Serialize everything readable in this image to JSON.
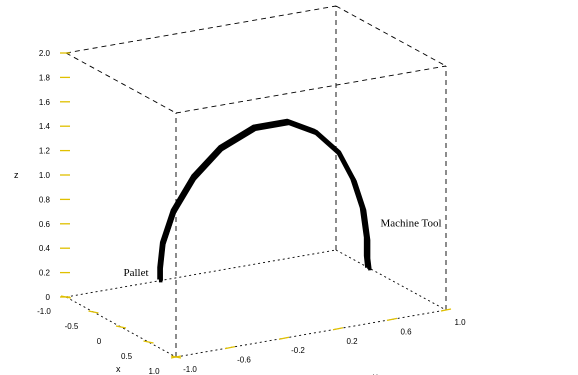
{
  "chart_data": {
    "type": "line3d",
    "title": "",
    "xlabel": "x",
    "ylabel": "y",
    "zlabel": "z",
    "xlim": [
      -1.0,
      1.0
    ],
    "ylim": [
      -1.0,
      1.0
    ],
    "zlim": [
      0,
      2.0
    ],
    "x_ticks": [
      "-1.0",
      "-0.5",
      "0",
      "0.5",
      "1.0"
    ],
    "y_ticks": [
      "-1.0",
      "-0.6",
      "-0.2",
      "0.2",
      "0.6",
      "1.0"
    ],
    "z_ticks": [
      "0",
      "0.2",
      "0.4",
      "0.6",
      "0.8",
      "1.0",
      "1.2",
      "1.4",
      "1.6",
      "1.8",
      "2.0"
    ],
    "tick_color": "#e0c000",
    "line_color": "#000000",
    "grid": false,
    "annotations": [
      {
        "text": "Pallet",
        "x": -0.2,
        "y": -0.9,
        "z": 0.35
      },
      {
        "text": "Machine Tool",
        "x": 0.3,
        "y": 0.8,
        "z": 0.55
      }
    ],
    "series": [
      {
        "points": [
          [
            0.2,
            -0.8,
            0.4
          ],
          [
            0.2,
            -0.8,
            0.5
          ],
          [
            0.2,
            -0.78,
            0.7
          ],
          [
            0.2,
            -0.7,
            0.95
          ],
          [
            0.2,
            -0.55,
            1.2
          ],
          [
            0.2,
            -0.35,
            1.4
          ],
          [
            0.2,
            -0.1,
            1.52
          ],
          [
            0.2,
            0.15,
            1.52
          ],
          [
            0.2,
            0.35,
            1.4
          ],
          [
            0.2,
            0.52,
            1.2
          ],
          [
            0.2,
            0.63,
            0.95
          ],
          [
            0.2,
            0.7,
            0.7
          ],
          [
            0.2,
            0.73,
            0.45
          ],
          [
            0.2,
            0.73,
            0.3
          ],
          [
            0.2,
            0.74,
            0.2
          ]
        ]
      },
      {
        "points": [
          [
            0.24,
            -0.8,
            0.4
          ],
          [
            0.24,
            -0.8,
            0.5
          ],
          [
            0.24,
            -0.78,
            0.7
          ],
          [
            0.24,
            -0.7,
            0.95
          ],
          [
            0.24,
            -0.55,
            1.2
          ],
          [
            0.24,
            -0.35,
            1.4
          ],
          [
            0.24,
            -0.1,
            1.52
          ],
          [
            0.24,
            0.15,
            1.52
          ],
          [
            0.24,
            0.35,
            1.4
          ],
          [
            0.24,
            0.52,
            1.2
          ],
          [
            0.24,
            0.63,
            0.95
          ],
          [
            0.24,
            0.7,
            0.7
          ],
          [
            0.24,
            0.73,
            0.45
          ],
          [
            0.24,
            0.73,
            0.3
          ],
          [
            0.24,
            0.74,
            0.2
          ]
        ]
      },
      {
        "points": [
          [
            0.28,
            -0.82,
            0.4
          ],
          [
            0.28,
            -0.82,
            0.5
          ],
          [
            0.28,
            -0.8,
            0.7
          ],
          [
            0.28,
            -0.72,
            0.95
          ],
          [
            0.28,
            -0.57,
            1.2
          ],
          [
            0.28,
            -0.37,
            1.4
          ],
          [
            0.28,
            -0.12,
            1.52
          ],
          [
            0.28,
            0.13,
            1.52
          ],
          [
            0.28,
            0.33,
            1.4
          ],
          [
            0.28,
            0.5,
            1.2
          ],
          [
            0.28,
            0.62,
            0.95
          ],
          [
            0.28,
            0.69,
            0.7
          ],
          [
            0.28,
            0.72,
            0.45
          ],
          [
            0.28,
            0.72,
            0.3
          ],
          [
            0.28,
            0.73,
            0.2
          ]
        ]
      }
    ]
  }
}
